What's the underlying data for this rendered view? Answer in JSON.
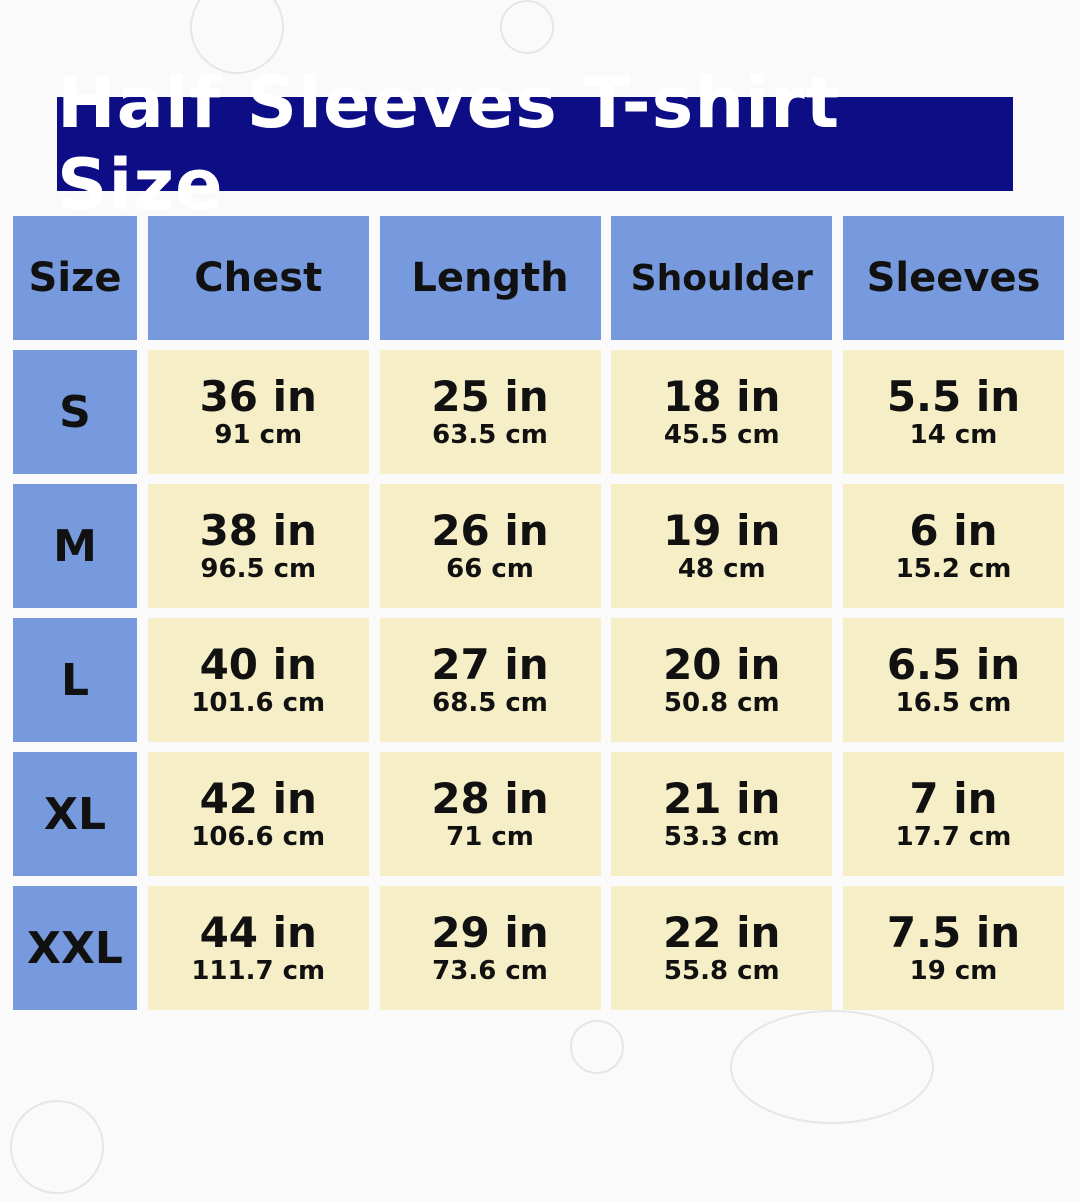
{
  "title": "Half Sleeves T-shirt Size",
  "colors": {
    "title_bg": "#0d0e85",
    "header_bg": "#7799dd",
    "cell_bg": "#f5eec6"
  },
  "headers": [
    "Size",
    "Chest",
    "Length",
    "Shoulder",
    "Sleeves"
  ],
  "rows": [
    {
      "size": "S",
      "values": [
        {
          "in": "36 in",
          "cm": "91 cm"
        },
        {
          "in": "25 in",
          "cm": "63.5 cm"
        },
        {
          "in": "18 in",
          "cm": "45.5 cm"
        },
        {
          "in": "5.5 in",
          "cm": "14 cm"
        }
      ]
    },
    {
      "size": "M",
      "values": [
        {
          "in": "38 in",
          "cm": "96.5 cm"
        },
        {
          "in": "26 in",
          "cm": "66 cm"
        },
        {
          "in": "19 in",
          "cm": "48 cm"
        },
        {
          "in": "6 in",
          "cm": "15.2 cm"
        }
      ]
    },
    {
      "size": "L",
      "values": [
        {
          "in": "40 in",
          "cm": "101.6 cm"
        },
        {
          "in": "27 in",
          "cm": "68.5 cm"
        },
        {
          "in": "20 in",
          "cm": "50.8 cm"
        },
        {
          "in": "6.5 in",
          "cm": "16.5 cm"
        }
      ]
    },
    {
      "size": "XL",
      "values": [
        {
          "in": "42 in",
          "cm": "106.6 cm"
        },
        {
          "in": "28 in",
          "cm": "71 cm"
        },
        {
          "in": "21 in",
          "cm": "53.3 cm"
        },
        {
          "in": "7 in",
          "cm": "17.7 cm"
        }
      ]
    },
    {
      "size": "XXL",
      "values": [
        {
          "in": "44 in",
          "cm": "111.7 cm"
        },
        {
          "in": "29 in",
          "cm": "73.6 cm"
        },
        {
          "in": "22 in",
          "cm": "55.8 cm"
        },
        {
          "in": "7.5 in",
          "cm": "19 cm"
        }
      ]
    }
  ]
}
